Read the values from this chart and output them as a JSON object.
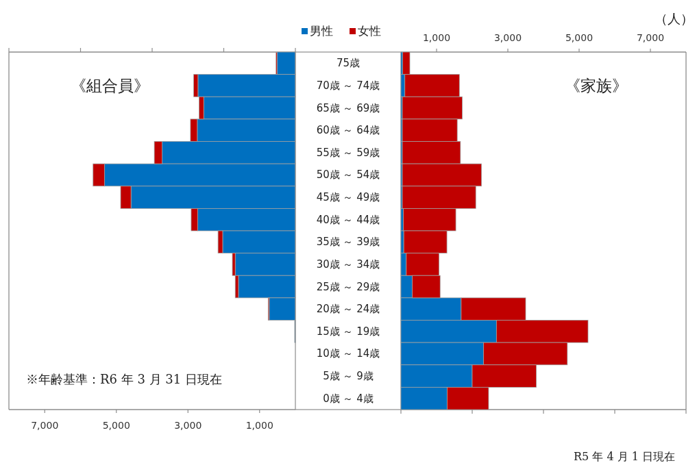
{
  "chart_data": [
    {
      "type": "bar",
      "orientation": "horizontal",
      "stacked": true,
      "legend": "top",
      "categories": [
        "75歳",
        "70歳 ～ 74歳",
        "65歳 ～ 69歳",
        "60歳 ～ 64歳",
        "55歳 ～ 59歳",
        "50歳 ～ 54歳",
        "45歳 ～ 49歳",
        "40歳 ～ 44歳",
        "35歳 ～ 39歳",
        "30歳 ～ 34歳",
        "25歳 ～ 29歳",
        "20歳 ～ 24歳",
        "15歳 ～ 19歳",
        "10歳 ～ 14歳",
        "5歳 ～ 9歳",
        "0歳 ～ 4歳"
      ],
      "series": [
        {
          "name": "男性",
          "color": "#0070c0",
          "values": [
            510,
            2720,
            2560,
            2740,
            3720,
            5330,
            4590,
            2730,
            2030,
            1680,
            1590,
            730,
            20,
            0,
            0,
            0
          ]
        },
        {
          "name": "女性",
          "color": "#c00000",
          "values": [
            30,
            120,
            130,
            190,
            220,
            320,
            290,
            180,
            130,
            80,
            90,
            30,
            0,
            0,
            0,
            0
          ]
        }
      ],
      "xlim": [
        8000,
        0
      ],
      "xticks": [
        {
          "value": 7000,
          "label": "7,000"
        },
        {
          "value": 5000,
          "label": "5,000"
        },
        {
          "value": 3000,
          "label": "3,000"
        },
        {
          "value": 1000,
          "label": "1,000"
        },
        {
          "value": 8000,
          "label": null
        },
        {
          "value": 6000,
          "label": null
        },
        {
          "value": 4000,
          "label": null
        },
        {
          "value": 2000,
          "label": null
        },
        {
          "value": 0,
          "label": null
        }
      ],
      "annotations": [
        "《組合員》",
        "※年齢基準：R6 年 3 月 31 日現在"
      ]
    },
    {
      "type": "bar",
      "orientation": "horizontal",
      "stacked": true,
      "categories": [
        null,
        null,
        null,
        null,
        null,
        null,
        null,
        null,
        null,
        null,
        null,
        null,
        null,
        null,
        null,
        null
      ],
      "series": [
        {
          "color": "#0070c0",
          "values": [
            50,
            110,
            40,
            40,
            40,
            40,
            40,
            70,
            80,
            150,
            320,
            1690,
            2680,
            2320,
            2000,
            1300
          ]
        },
        {
          "color": "#c00000",
          "values": [
            200,
            1530,
            1680,
            1540,
            1630,
            2220,
            2060,
            1470,
            1210,
            920,
            780,
            1810,
            2570,
            2350,
            1800,
            1160
          ]
        }
      ],
      "xlim": [
        0,
        8000
      ],
      "xticks": [
        {
          "value": 1000,
          "label": "1,000"
        },
        {
          "value": 3000,
          "label": "3,000"
        },
        {
          "value": 5000,
          "label": "5,000"
        },
        {
          "value": 7000,
          "label": "7,000"
        },
        {
          "value": 0,
          "label": null
        },
        {
          "value": 2000,
          "label": null
        },
        {
          "value": 4000,
          "label": null
        },
        {
          "value": 6000,
          "label": null
        },
        {
          "value": 8000,
          "label": null
        }
      ],
      "xlabel": "（人）",
      "annotations": [
        "《家族》",
        "R5 年 4 月 1 日現在"
      ]
    }
  ]
}
